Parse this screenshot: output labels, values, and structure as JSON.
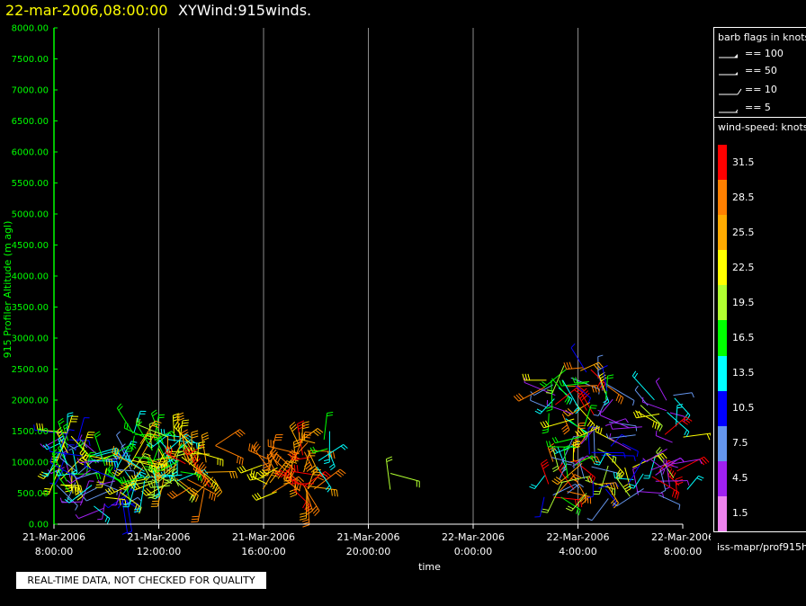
{
  "header": {
    "datetime": "22-mar-2006,08:00:00",
    "plot_title": "XYWind:915winds."
  },
  "qc_note": "REAL-TIME DATA, NOT CHECKED FOR QUALITY",
  "legend": {
    "barb_title": "barb flags in knots",
    "barb_items": [
      "== 100",
      "== 50",
      "== 10",
      "== 5"
    ],
    "speed_title": "wind-speed: knots",
    "speed_levels": [
      {
        "label": "31.5",
        "color": "#ff0000"
      },
      {
        "label": "28.5",
        "color": "#ff7f00"
      },
      {
        "label": "25.5",
        "color": "#ffaa00"
      },
      {
        "label": "22.5",
        "color": "#ffff00"
      },
      {
        "label": "19.5",
        "color": "#b0ff30"
      },
      {
        "label": "16.5",
        "color": "#00ff00"
      },
      {
        "label": "13.5",
        "color": "#00ffff"
      },
      {
        "label": "10.5",
        "color": "#0000ff"
      },
      {
        "label": "7.5",
        "color": "#6495ed"
      },
      {
        "label": "4.5",
        "color": "#a020f0"
      },
      {
        "label": "1.5",
        "color": "#ee82ee"
      }
    ],
    "source": "iss-mapr/prof915h"
  },
  "chart_data": {
    "type": "scatter",
    "ylabel": "915 Profiler Altitude (m agl)",
    "xlabel": "time",
    "ylim": [
      0,
      8000
    ],
    "xlim_hours": [
      0,
      24
    ],
    "y_ticks": [
      "8000.00",
      "7500.00",
      "7000.00",
      "6500.00",
      "6000.00",
      "5500.00",
      "5000.00",
      "4500.00",
      "4000.00",
      "3500.00",
      "3000.00",
      "2500.00",
      "2000.00",
      "1500.00",
      "1000.00",
      "500.00",
      "0.00"
    ],
    "x_ticks": [
      {
        "hour": 0,
        "date": "21-Mar-2006",
        "time": "8:00:00"
      },
      {
        "hour": 4,
        "date": "21-Mar-2006",
        "time": "12:00:00"
      },
      {
        "hour": 8,
        "date": "21-Mar-2006",
        "time": "16:00:00"
      },
      {
        "hour": 12,
        "date": "21-Mar-2006",
        "time": "20:00:00"
      },
      {
        "hour": 16,
        "date": "22-Mar-2006",
        "time": "0:00:00"
      },
      {
        "hour": 20,
        "date": "22-Mar-2006",
        "time": "4:00:00"
      },
      {
        "hour": 24,
        "date": "22-Mar-2006",
        "time": "8:00:00"
      }
    ],
    "grid": "vertical",
    "wind_clusters": [
      {
        "t_start": 0.0,
        "t_end": 1.0,
        "alt_min": 500,
        "alt_max": 1500,
        "n": 40,
        "speeds": [
          7.5,
          10.5,
          13.5,
          16.5,
          22.5,
          4.5
        ]
      },
      {
        "t_start": 1.0,
        "t_end": 3.0,
        "alt_min": 200,
        "alt_max": 1200,
        "n": 55,
        "speeds": [
          10.5,
          13.5,
          7.5,
          16.5,
          22.5,
          4.5
        ]
      },
      {
        "t_start": 3.0,
        "t_end": 5.0,
        "alt_min": 600,
        "alt_max": 1500,
        "n": 75,
        "speeds": [
          16.5,
          19.5,
          22.5,
          13.5,
          25.5
        ]
      },
      {
        "t_start": 5.0,
        "t_end": 6.2,
        "alt_min": 500,
        "alt_max": 1300,
        "n": 22,
        "speeds": [
          22.5,
          25.5,
          28.5,
          31.5
        ]
      },
      {
        "t_start": 7.9,
        "t_end": 8.6,
        "alt_min": 500,
        "alt_max": 1200,
        "n": 18,
        "speeds": [
          25.5,
          28.5,
          22.5
        ]
      },
      {
        "t_start": 9.1,
        "t_end": 10.0,
        "alt_min": 500,
        "alt_max": 1350,
        "n": 32,
        "speeds": [
          31.5,
          28.5,
          25.5
        ]
      },
      {
        "t_start": 10.0,
        "t_end": 10.6,
        "alt_min": 900,
        "alt_max": 1550,
        "n": 6,
        "speeds": [
          16.5,
          13.5
        ]
      },
      {
        "t_start": 12.8,
        "t_end": 13.0,
        "alt_min": 550,
        "alt_max": 850,
        "n": 2,
        "speeds": [
          19.5
        ]
      },
      {
        "t_start": 18.7,
        "t_end": 21.2,
        "alt_min": 400,
        "alt_max": 2600,
        "n": 95,
        "speeds": [
          22.5,
          10.5,
          4.5,
          16.5,
          13.5,
          25.5,
          31.5,
          7.5,
          19.5,
          28.5
        ]
      },
      {
        "t_start": 21.2,
        "t_end": 24.2,
        "alt_min": 400,
        "alt_max": 2100,
        "n": 50,
        "speeds": [
          13.5,
          7.5,
          10.5,
          4.5,
          19.5,
          22.5,
          31.5
        ]
      }
    ]
  }
}
